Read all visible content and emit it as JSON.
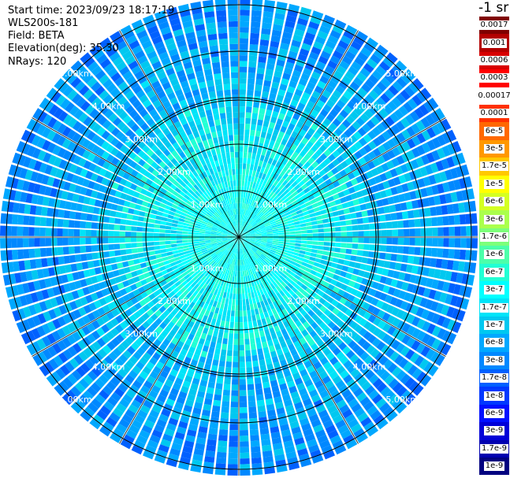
{
  "info": {
    "start_time": "Start time: 2023/09/23 18:17:19",
    "instrument": "WLS200s-181",
    "field": "Field: BETA",
    "elevation": "Elevation(deg): 35.30",
    "nrays": "NRays: 120"
  },
  "colorbar": {
    "unit": "-1 sr",
    "levels": [
      {
        "label": "0.0017",
        "color": "#800000"
      },
      {
        "label": "0.001",
        "color": "#b30000"
      },
      {
        "label": "0.0006",
        "color": "#d80000"
      },
      {
        "label": "0.0003",
        "color": "#ff0000"
      },
      {
        "label": "0.00017",
        "color": "#ffffff"
      },
      {
        "label": "0.0001",
        "color": "#ff3000"
      },
      {
        "label": "6e-5",
        "color": "#ff6800"
      },
      {
        "label": "3e-5",
        "color": "#ff9800"
      },
      {
        "label": "1.7e-5",
        "color": "#ffc800"
      },
      {
        "label": "1e-5",
        "color": "#ffff00"
      },
      {
        "label": "6e-6",
        "color": "#d4ff22"
      },
      {
        "label": "3e-6",
        "color": "#aaff4c"
      },
      {
        "label": "1.7e-6",
        "color": "#7cff7a"
      },
      {
        "label": "1e-6",
        "color": "#4cffaa"
      },
      {
        "label": "6e-7",
        "color": "#22ffd4"
      },
      {
        "label": "3e-7",
        "color": "#00ffff"
      },
      {
        "label": "1.7e-7",
        "color": "#00e4f8"
      },
      {
        "label": "1e-7",
        "color": "#00c8f0"
      },
      {
        "label": "6e-8",
        "color": "#00a8ff"
      },
      {
        "label": "3e-8",
        "color": "#0088ff"
      },
      {
        "label": "1.7e-8",
        "color": "#0060ff"
      },
      {
        "label": "1e-8",
        "color": "#0038ff"
      },
      {
        "label": "6e-9",
        "color": "#0010ff"
      },
      {
        "label": "3e-9",
        "color": "#0000d8"
      },
      {
        "label": "1.7e-9",
        "color": "#0000b0"
      },
      {
        "label": "1e-9",
        "color": "#000080"
      }
    ]
  },
  "range_labels": [
    "1.00km",
    "2.00km",
    "3.00km",
    "4.00km",
    "5.00km"
  ],
  "nrays": 120
}
